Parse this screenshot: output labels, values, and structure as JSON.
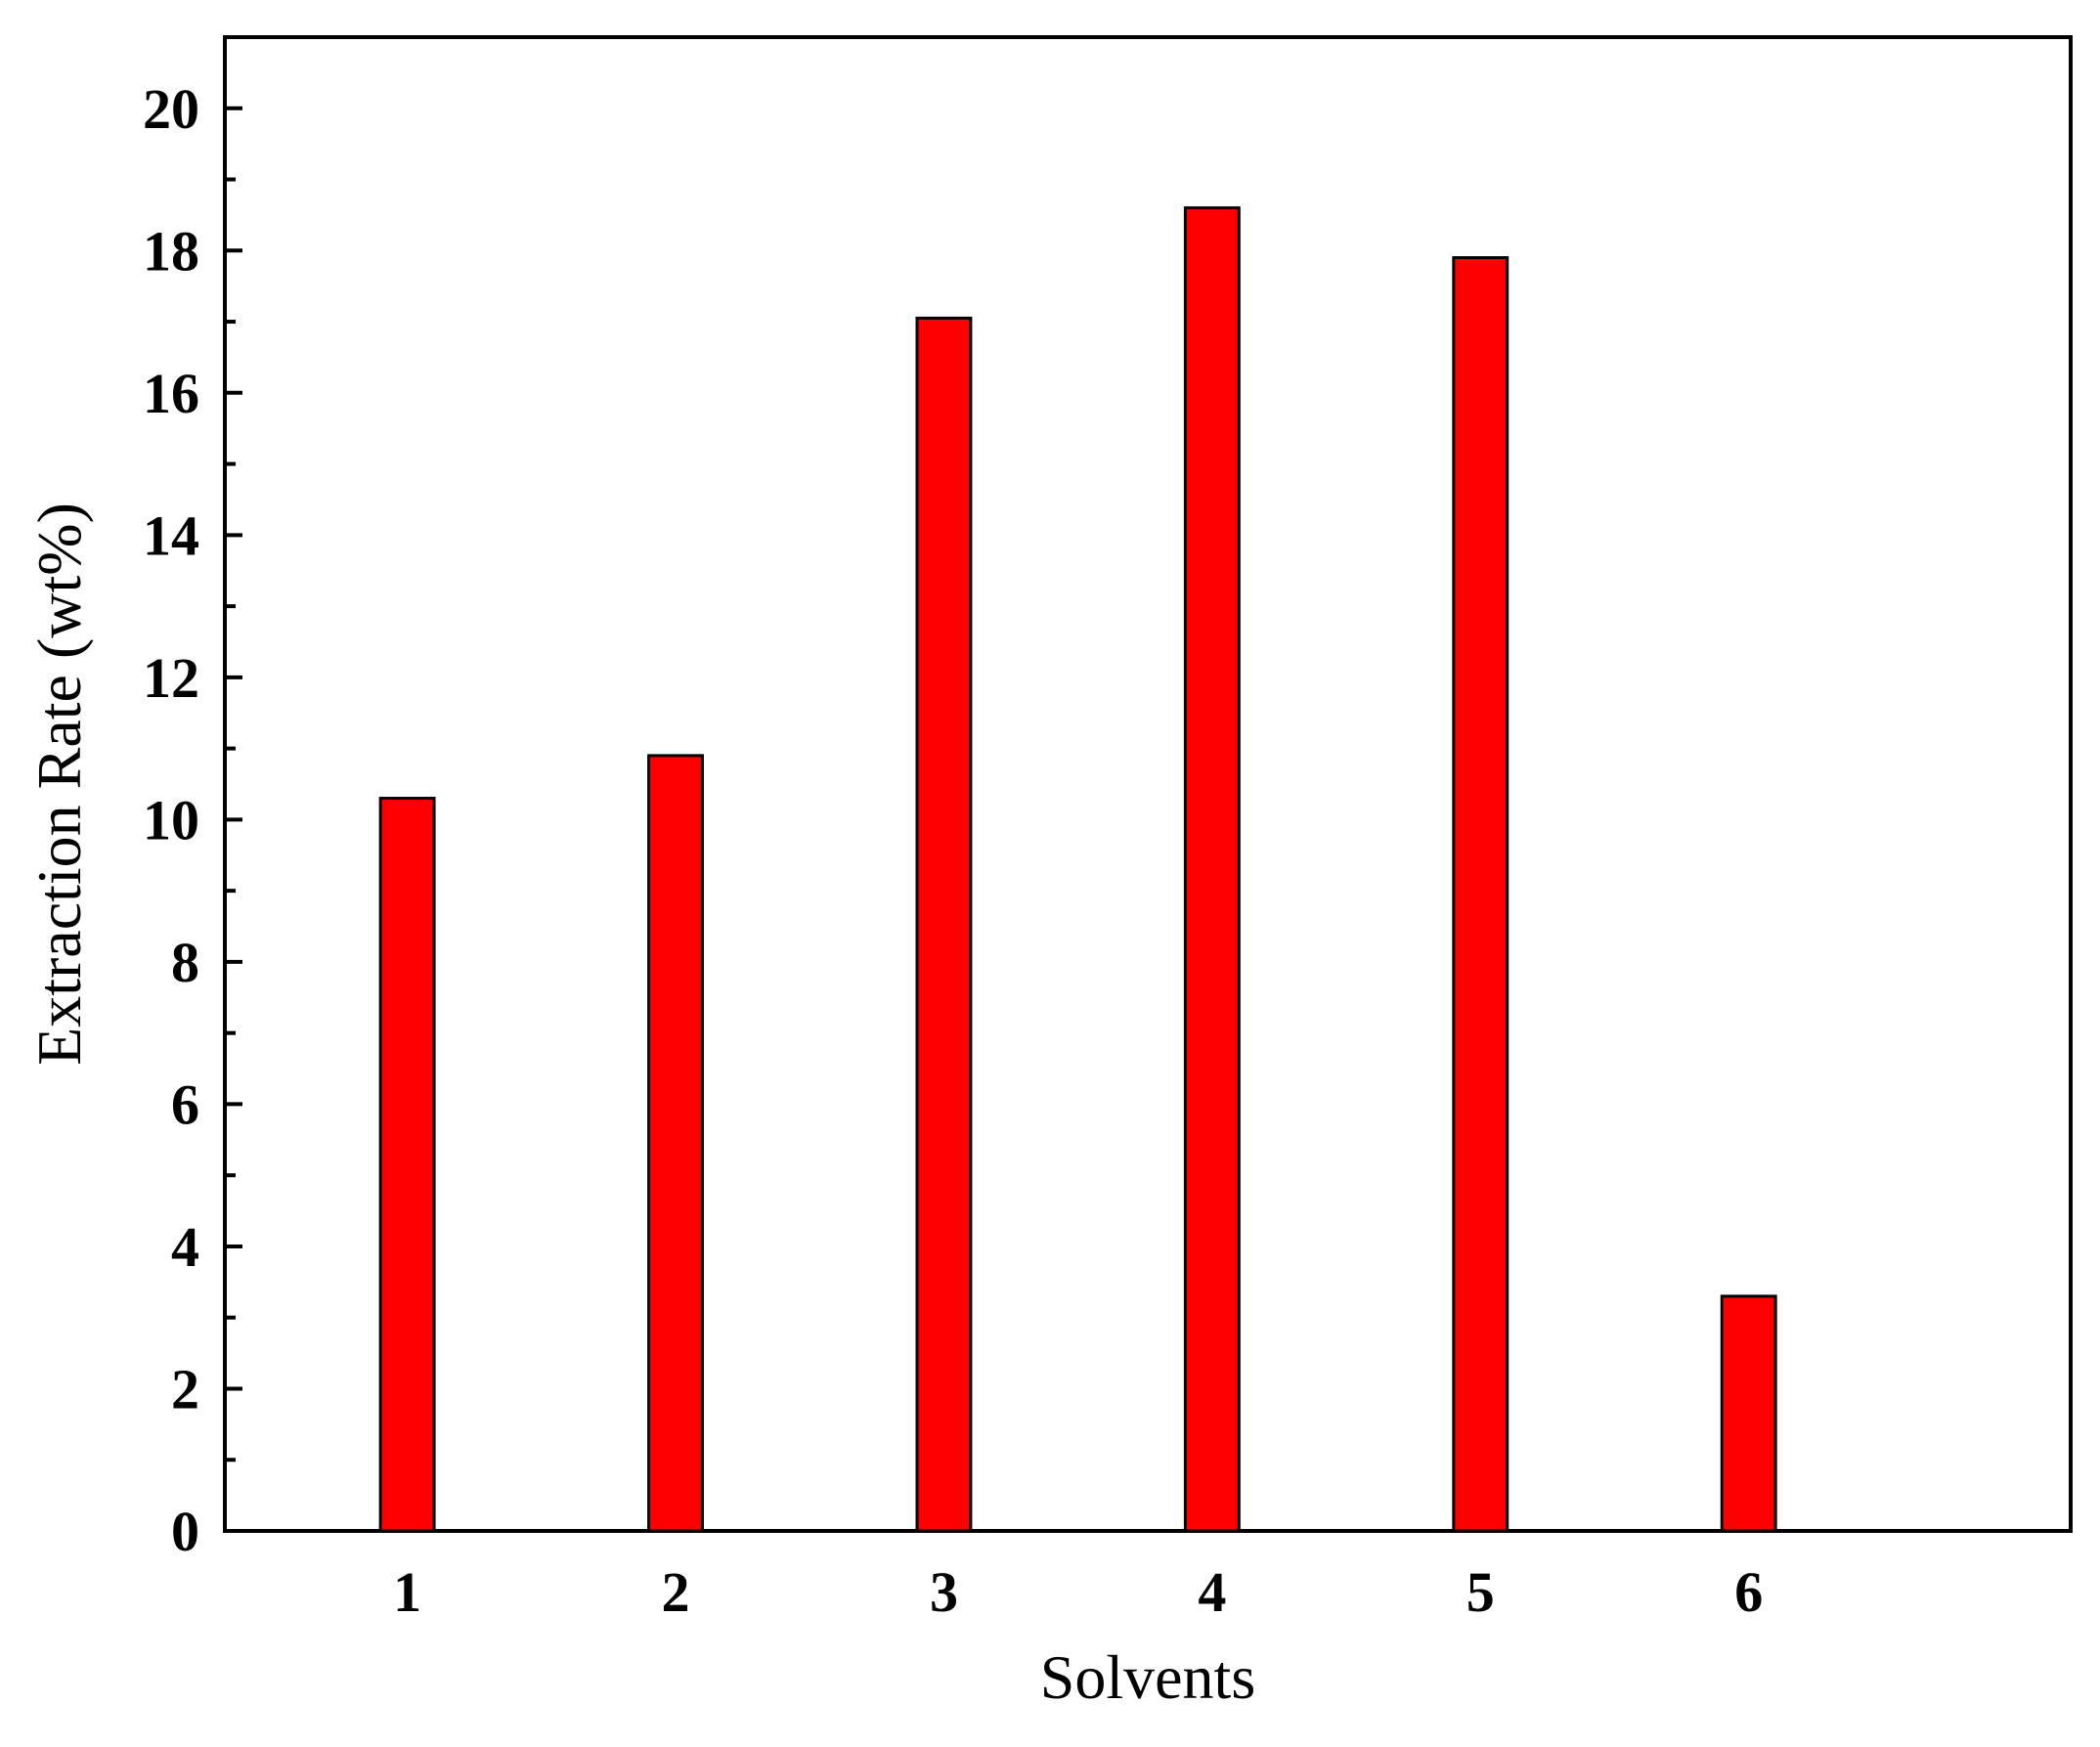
{
  "chart_data": {
    "type": "bar",
    "categories": [
      "1",
      "2",
      "3",
      "4",
      "5",
      "6"
    ],
    "values": [
      10.3,
      10.9,
      17.05,
      18.6,
      17.9,
      3.3
    ],
    "xlabel": "Solvents",
    "ylabel": "Extraction Rate (wt%)",
    "ylim": [
      0,
      21
    ],
    "yticks": [
      0,
      2,
      4,
      6,
      8,
      10,
      12,
      14,
      16,
      18,
      20
    ],
    "grid": false,
    "bar_color": "#ff0000",
    "edge_color": "#000000"
  }
}
